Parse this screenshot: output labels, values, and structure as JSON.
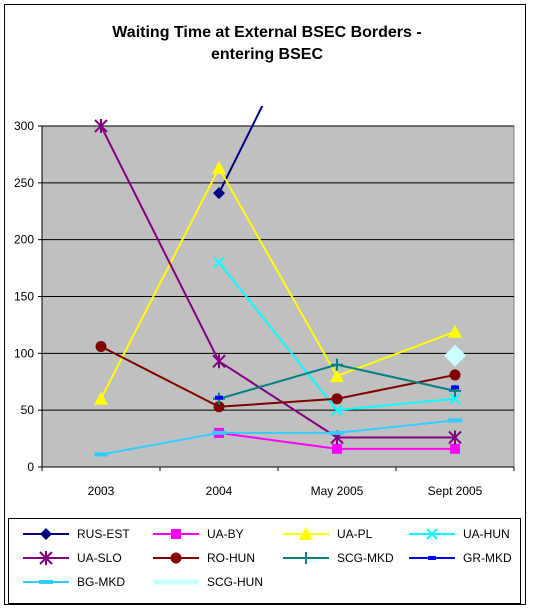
{
  "chart_data": {
    "type": "line",
    "title_lines": [
      "Waiting Time at External BSEC Borders -",
      "entering BSEC"
    ],
    "xlabel": "",
    "ylabel": "",
    "categories": [
      "2003",
      "2004",
      "May 2005",
      "Sept 2005"
    ],
    "ylim": [
      0,
      300
    ],
    "yticks": [
      0,
      50,
      100,
      150,
      200,
      250,
      300
    ],
    "plot_background": "#c0c0c0",
    "grid": true,
    "legend_position": "bottom",
    "series": [
      {
        "name": "RUS-EST",
        "color": "#000080",
        "marker": "diamond",
        "values": [
          null,
          241,
          450,
          null
        ]
      },
      {
        "name": "UA-BY",
        "color": "#ff00ff",
        "marker": "square",
        "values": [
          null,
          30,
          16,
          16
        ]
      },
      {
        "name": "UA-PL",
        "color": "#ffff00",
        "marker": "triangle",
        "values": [
          60,
          263,
          80,
          119
        ]
      },
      {
        "name": "UA-HUN",
        "color": "#00ffff",
        "marker": "x",
        "values": [
          null,
          180,
          50,
          60
        ]
      },
      {
        "name": "UA-SLO",
        "color": "#800080",
        "marker": "star",
        "values": [
          300,
          93,
          26,
          26
        ]
      },
      {
        "name": "RO-HUN",
        "color": "#800000",
        "marker": "circle",
        "values": [
          106,
          53,
          60,
          81
        ]
      },
      {
        "name": "SCG-MKD",
        "color": "#008080",
        "marker": "plus",
        "values": [
          null,
          60,
          90,
          67
        ]
      },
      {
        "name": "GR-MKD",
        "color": "#0000ff",
        "marker": "dash",
        "values": [
          null,
          61,
          null,
          70
        ]
      },
      {
        "name": "BG-MKD",
        "color": "#33ccff",
        "marker": "bar",
        "values": [
          11,
          30,
          30,
          41
        ]
      },
      {
        "name": "SCG-HUN",
        "color": "#ccffff",
        "marker": "bigdiamond",
        "values": [
          null,
          null,
          null,
          98
        ]
      }
    ]
  }
}
